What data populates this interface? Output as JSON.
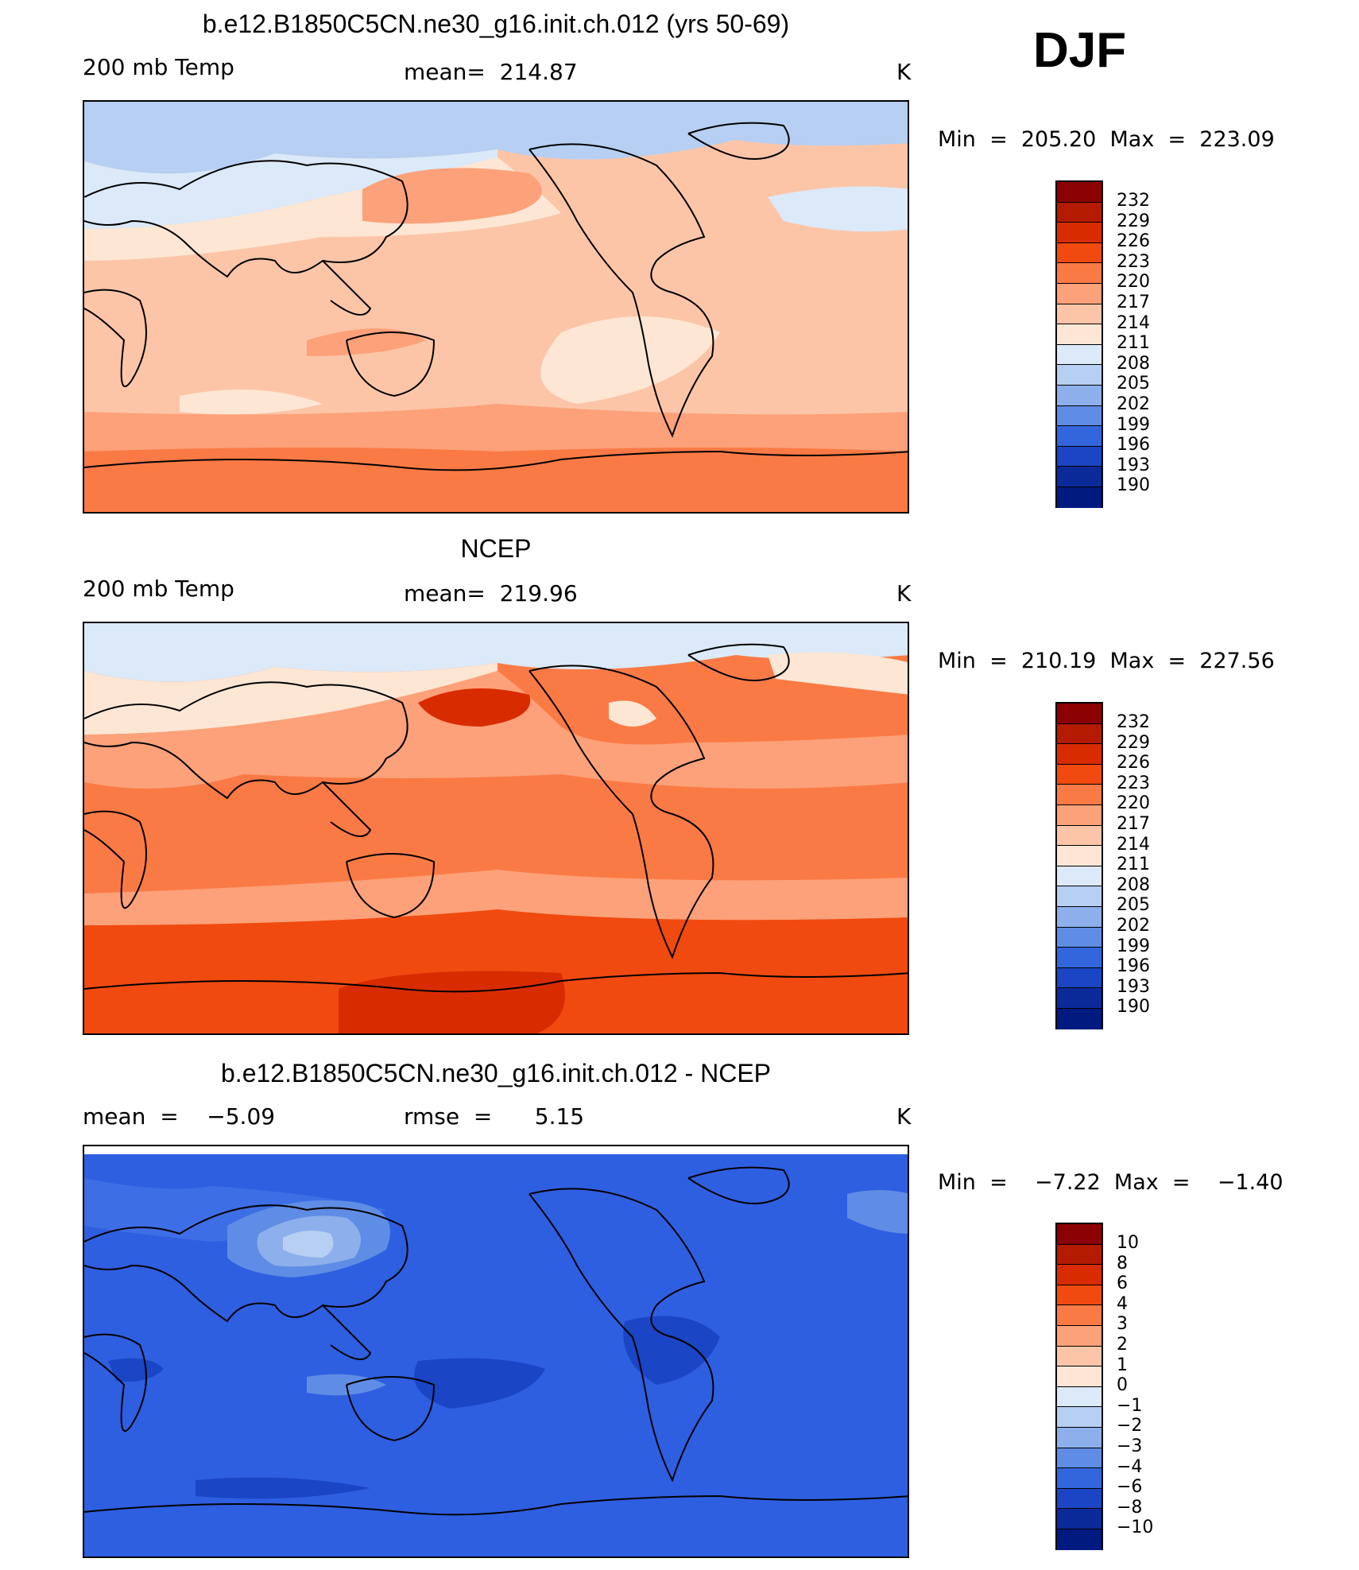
{
  "season": "DJF",
  "panels": [
    {
      "title": "b.e12.B1850C5CN.ne30_g16.init.ch.012 (yrs 50-69)",
      "left_label": "200 mb Temp",
      "center_label": "mean=  214.87",
      "right_label": "K",
      "minmax": "Min  =  205.20  Max  =  223.09",
      "colorbar_labels": [
        "232",
        "229",
        "226",
        "223",
        "220",
        "217",
        "214",
        "211",
        "208",
        "205",
        "202",
        "199",
        "196",
        "193",
        "190"
      ]
    },
    {
      "title": "NCEP",
      "left_label": "200 mb Temp",
      "center_label": "mean=  219.96",
      "right_label": "K",
      "minmax": "Min  =  210.19  Max  =  227.56",
      "colorbar_labels": [
        "232",
        "229",
        "226",
        "223",
        "220",
        "217",
        "214",
        "211",
        "208",
        "205",
        "202",
        "199",
        "196",
        "193",
        "190"
      ]
    },
    {
      "title": "b.e12.B1850C5CN.ne30_g16.init.ch.012 - NCEP",
      "left_label": "mean  =    −5.09",
      "center_label": "rmse  =      5.15",
      "right_label": "K",
      "minmax": "Min  =    −7.22  Max  =    −1.40",
      "colorbar_labels": [
        "10",
        "8",
        "6",
        "4",
        "3",
        "2",
        "1",
        "0",
        "−1",
        "−2",
        "−3",
        "−4",
        "−6",
        "−8",
        "−10"
      ]
    }
  ],
  "colorbar_colors": [
    "#8b0000",
    "#b31a00",
    "#d92b00",
    "#f04a10",
    "#fa7a45",
    "#fca179",
    "#fcc5a8",
    "#fde6d4",
    "#dbe9f8",
    "#b6cff2",
    "#8db0ec",
    "#5f8de5",
    "#3366dd",
    "#1a45c4",
    "#0a2a9a",
    "#001a80"
  ],
  "colors": {
    "p1_bg": "#fcc5a8",
    "p2_bg": "#fa7a45",
    "p3_bg": "#2e5fe0"
  }
}
